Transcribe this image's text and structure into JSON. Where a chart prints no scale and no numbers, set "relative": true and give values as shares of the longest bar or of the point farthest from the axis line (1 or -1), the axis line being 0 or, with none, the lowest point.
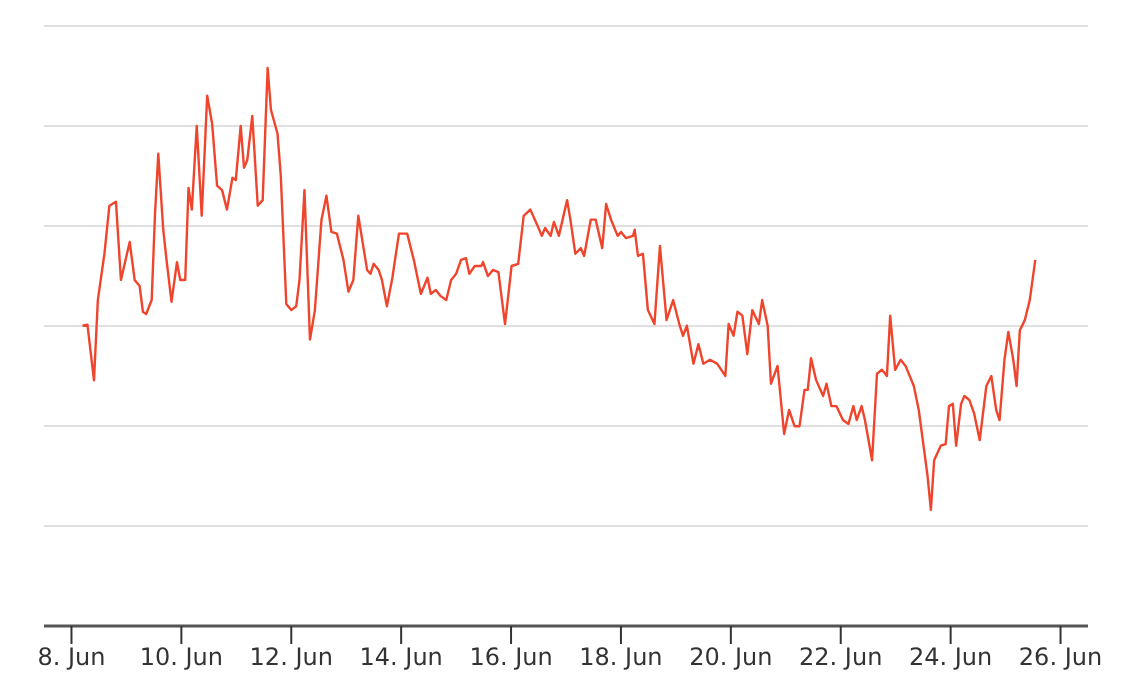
{
  "chart_data": {
    "type": "line",
    "relative": true,
    "grid": "y",
    "line_style": "solid",
    "xlim": [
      "--06-07T12:00",
      "--06-26T12:00"
    ],
    "xticks": [
      {
        "value": "--06-08",
        "label": "8. Jun"
      },
      {
        "value": "--06-10",
        "label": "10. Jun"
      },
      {
        "value": "--06-12",
        "label": "12. Jun"
      },
      {
        "value": "--06-14",
        "label": "14. Jun"
      },
      {
        "value": "--06-16",
        "label": "16. Jun"
      },
      {
        "value": "--06-18",
        "label": "18. Jun"
      },
      {
        "value": "--06-20",
        "label": "20. Jun"
      },
      {
        "value": "--06-22",
        "label": "22. Jun"
      },
      {
        "value": "--06-24",
        "label": "24. Jun"
      },
      {
        "value": "--06-26",
        "label": "26. Jun"
      }
    ],
    "x": [
      "--06-08T04:48",
      "--06-08T06:58",
      "--06-08T09:50",
      "--06-08T11:31",
      "--06-08T14:24",
      "--06-08T16:34",
      "--06-08T19:26",
      "--06-08T21:36",
      "--06-09T01:26",
      "--06-09T03:36",
      "--06-09T05:46",
      "--06-09T07:12",
      "--06-09T08:38",
      "--06-09T11:02",
      "--06-09T12:29",
      "--06-09T13:55",
      "--06-09T16:05",
      "--06-09T17:31",
      "--06-09T19:41",
      "--06-09T22:05",
      "--06-09T23:31",
      "--06-10T01:41",
      "--06-10T03:07",
      "--06-10T04:34",
      "--06-10T06:43",
      "--06-10T08:53",
      "--06-10T11:17",
      "--06-10T13:26",
      "--06-10T15:36",
      "--06-10T17:46",
      "--06-10T19:55",
      "--06-10T22:19",
      "--06-10T23:46",
      "--06-11T01:55",
      "--06-11T03:22",
      "--06-11T04:48",
      "--06-11T06:58",
      "--06-11T09:22",
      "--06-11T11:31",
      "--06-11T13:41",
      "--06-11T15:07",
      "--06-11T18:00",
      "--06-11T19:26",
      "--06-11T21:50",
      "--06-12T00:00",
      "--06-12T02:10",
      "--06-12T03:36",
      "--06-12T05:46",
      "--06-12T08:10",
      "--06-12T10:19",
      "--06-12T13:12",
      "--06-12T15:22",
      "--06-12T17:31",
      "--06-12T19:55",
      "--06-12T22:48",
      "--06-13T00:58",
      "--06-13T03:07",
      "--06-13T05:17",
      "--06-13T06:43",
      "--06-13T09:07",
      "--06-13T10:34",
      "--06-13T12:00",
      "--06-13T14:10",
      "--06-13T15:36",
      "--06-13T17:46",
      "--06-13T20:10",
      "--06-13T23:02",
      "--06-14T02:38",
      "--06-14T05:31",
      "--06-14T08:38",
      "--06-14T11:31",
      "--06-14T12:58",
      "--06-14T15:07",
      "--06-14T17:17",
      "--06-14T19:41",
      "--06-14T21:50",
      "--06-15T00:00",
      "--06-15T02:10",
      "--06-15T04:19",
      "--06-15T05:46",
      "--06-15T08:10",
      "--06-15T11:02",
      "--06-15T11:46",
      "--06-15T13:55",
      "--06-15T16:05",
      "--06-15T18:29",
      "--06-15T21:22",
      "--06-16T00:14",
      "--06-16T03:07",
      "--06-16T05:31",
      "--06-16T08:24",
      "--06-16T11:17",
      "--06-16T13:26",
      "--06-16T14:53",
      "--06-16T17:17",
      "--06-16T18:43",
      "--06-16T20:53",
      "--06-17T00:29",
      "--06-17T01:55",
      "--06-17T04:05",
      "--06-17T06:29",
      "--06-17T07:55",
      "--06-17T10:48",
      "--06-17T12:58",
      "--06-17T15:50",
      "--06-17T17:31",
      "--06-17T19:41",
      "--06-17T22:34",
      "--06-18T00:00",
      "--06-18T02:10",
      "--06-18T05:17",
      "--06-18T06:00",
      "--06-18T07:26",
      "--06-18T09:36",
      "--06-18T11:46",
      "--06-18T14:38",
      "--06-18T17:02",
      "--06-18T19:55",
      "--06-18T22:48",
      "--06-19T01:41",
      "--06-19T03:07",
      "--06-19T04:48",
      "--06-19T07:41",
      "--06-19T09:50",
      "--06-19T12:00",
      "--06-19T14:53",
      "--06-19T18:00",
      "--06-19T21:36",
      "--06-19T23:02",
      "--06-20T01:12",
      "--06-20T02:53",
      "--06-20T05:02",
      "--06-20T07:12",
      "--06-20T09:22",
      "--06-20T12:14",
      "--06-20T13:41",
      "--06-20T16:05",
      "--06-20T17:31",
      "--06-20T20:24",
      "--06-20T23:17",
      "--06-21T01:26",
      "--06-21T03:50",
      "--06-21T06:00",
      "--06-21T08:10",
      "--06-21T09:36",
      "--06-21T11:02",
      "--06-21T13:12",
      "--06-21T16:19",
      "--06-21T17:46",
      "--06-21T19:55",
      "--06-21T22:05",
      "--06-22T00:58",
      "--06-22T03:22",
      "--06-22T05:31",
      "--06-22T06:58",
      "--06-22T09:07",
      "--06-22T10:34",
      "--06-22T13:41",
      "--06-22T15:50",
      "--06-22T18:00",
      "--06-22T20:10",
      "--06-22T21:36",
      "--06-22T23:46",
      "--06-23T02:10",
      "--06-23T04:19",
      "--06-23T07:55",
      "--06-23T10:05",
      "--06-23T13:55",
      "--06-23T15:22",
      "--06-23T16:48",
      "--06-23T19:41",
      "--06-23T21:50",
      "--06-23T23:17",
      "--06-24T00:58",
      "--06-24T02:24",
      "--06-24T04:34",
      "--06-24T06:00",
      "--06-24T08:10",
      "--06-24T10:19",
      "--06-24T12:43",
      "--06-24T15:36",
      "--06-24T17:46",
      "--06-24T19:55",
      "--06-24T21:22",
      "--06-24T23:31",
      "--06-25T01:12",
      "--06-25T03:22",
      "--06-25T04:48",
      "--06-25T06:14",
      "--06-25T08:24",
      "--06-25T10:34",
      "--06-25T12:58"
    ],
    "series": [
      {
        "color": "#f0452d",
        "values": [
          0.538,
          0.54,
          0.44,
          0.584,
          0.667,
          0.753,
          0.76,
          0.62,
          0.688,
          0.62,
          0.609,
          0.563,
          0.559,
          0.584,
          0.738,
          0.846,
          0.71,
          0.656,
          0.581,
          0.652,
          0.62,
          0.62,
          0.785,
          0.746,
          0.896,
          0.735,
          0.95,
          0.9,
          0.789,
          0.781,
          0.746,
          0.803,
          0.799,
          0.896,
          0.821,
          0.835,
          0.914,
          0.753,
          0.763,
          1,
          0.925,
          0.882,
          0.806,
          0.577,
          0.566,
          0.573,
          0.62,
          0.781,
          0.513,
          0.566,
          0.728,
          0.771,
          0.706,
          0.703,
          0.656,
          0.599,
          0.62,
          0.735,
          0.699,
          0.638,
          0.631,
          0.649,
          0.638,
          0.62,
          0.573,
          0.624,
          0.703,
          0.703,
          0.656,
          0.595,
          0.624,
          0.595,
          0.602,
          0.591,
          0.584,
          0.62,
          0.631,
          0.656,
          0.659,
          0.631,
          0.645,
          0.645,
          0.652,
          0.627,
          0.638,
          0.634,
          0.541,
          0.645,
          0.649,
          0.735,
          0.746,
          0.72,
          0.699,
          0.713,
          0.699,
          0.724,
          0.699,
          0.763,
          0.728,
          0.667,
          0.677,
          0.663,
          0.728,
          0.728,
          0.677,
          0.756,
          0.728,
          0.699,
          0.706,
          0.695,
          0.699,
          0.71,
          0.663,
          0.667,
          0.566,
          0.541,
          0.681,
          0.548,
          0.584,
          0.538,
          0.52,
          0.538,
          0.47,
          0.505,
          0.47,
          0.477,
          0.47,
          0.448,
          0.541,
          0.52,
          0.563,
          0.556,
          0.487,
          0.566,
          0.541,
          0.584,
          0.538,
          0.434,
          0.466,
          0.344,
          0.387,
          0.358,
          0.358,
          0.423,
          0.423,
          0.48,
          0.441,
          0.412,
          0.434,
          0.394,
          0.394,
          0.369,
          0.362,
          0.394,
          0.369,
          0.394,
          0.369,
          0.297,
          0.452,
          0.459,
          0.448,
          0.556,
          0.459,
          0.477,
          0.466,
          0.43,
          0.387,
          0.269,
          0.208,
          0.297,
          0.323,
          0.326,
          0.394,
          0.398,
          0.323,
          0.398,
          0.412,
          0.405,
          0.38,
          0.333,
          0.43,
          0.448,
          0.387,
          0.369,
          0.477,
          0.527,
          0.477,
          0.43,
          0.53,
          0.548,
          0.584,
          0.656
        ]
      }
    ]
  }
}
